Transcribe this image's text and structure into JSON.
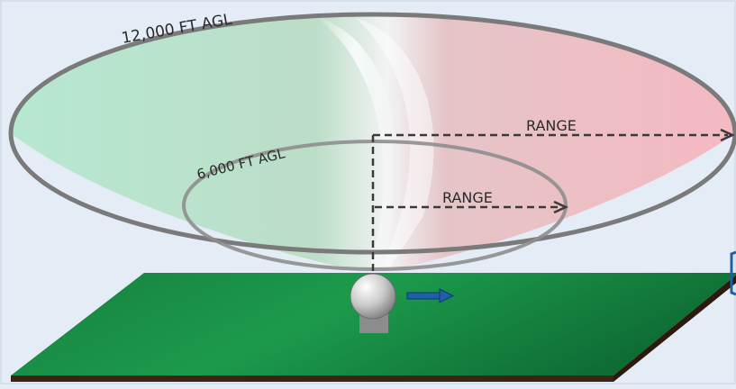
{
  "diagram": {
    "outer_label": "12,000 FT AGL",
    "inner_label": "6,000 FT AGL",
    "outer_range_label": "RANGE",
    "inner_range_label": "RANGE"
  },
  "colors": {
    "background": "#e4ecf5",
    "ground_green": "#1a8a45",
    "ground_edge": "#3b2414",
    "cone_green": "#bde8d2",
    "cone_red": "#f2bcc2",
    "ellipse_stroke": "#7a7a7a",
    "motion_arrow": "#1f5fa8"
  },
  "icons": {
    "sensor": "sphere-sensor-icon",
    "motion": "arrow-right-icon"
  }
}
